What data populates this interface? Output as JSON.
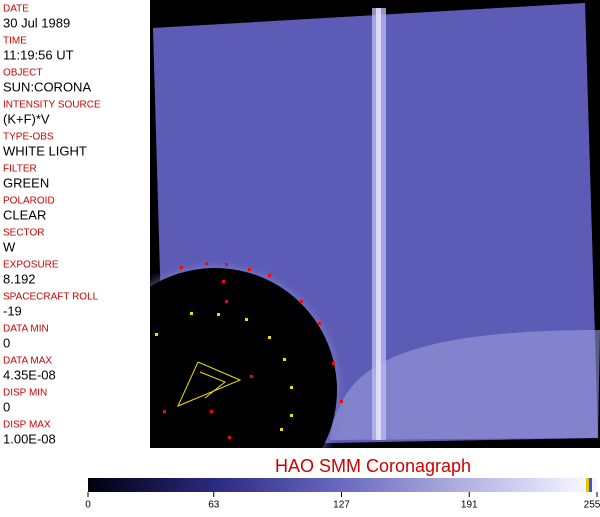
{
  "fields": [
    {
      "label": "DATE",
      "value": "30 Jul 1989"
    },
    {
      "label": "TIME",
      "value": "11:19:56 UT"
    },
    {
      "label": "OBJECT",
      "value": "SUN:CORONA"
    },
    {
      "label": "INTENSITY SOURCE",
      "value": "(K+F)*V"
    },
    {
      "label": "TYPE-OBS",
      "value": "WHITE LIGHT"
    },
    {
      "label": "FILTER",
      "value": "GREEN"
    },
    {
      "label": "POLAROID",
      "value": "CLEAR"
    },
    {
      "label": "SECTOR",
      "value": "W"
    },
    {
      "label": "EXPOSURE",
      "value": "8.192"
    },
    {
      "label": "SPACECRAFT ROLL",
      "value": "-19"
    },
    {
      "label": "DATA MIN",
      "value": "0"
    },
    {
      "label": "DATA MAX",
      "value": "4.35E-08"
    },
    {
      "label": "DISP MIN",
      "value": "0"
    },
    {
      "label": "DISP MAX",
      "value": "1.00E-08"
    }
  ],
  "title": "HAO  SMM Coronagraph",
  "colorbar": {
    "range": [
      0,
      255
    ],
    "ticks": [
      0,
      63,
      127,
      191,
      255
    ]
  }
}
